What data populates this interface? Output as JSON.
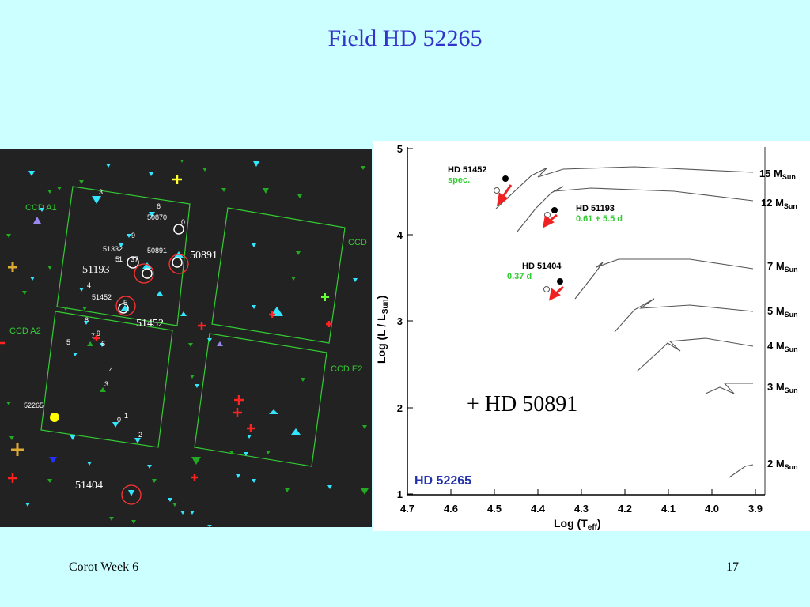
{
  "slide": {
    "title": "Field HD 52265",
    "footer_left": "Corot Week 6",
    "page_number": "17",
    "note": "+ HD 50891"
  },
  "starfield": {
    "background": "#222222",
    "ccd_labels": [
      "CCD A1",
      "CCD A2",
      "CCD",
      "CCD E2"
    ],
    "star_ids": [
      "51193",
      "50891",
      "51452",
      "51404",
      "50870",
      "51332",
      "52265"
    ],
    "small_numbers": [
      "3",
      "6",
      "0",
      "9",
      "50891",
      "4",
      "5",
      "8",
      "7",
      "9",
      "5",
      "6",
      "4",
      "3",
      "0",
      "1",
      "2"
    ]
  },
  "hr_diagram": {
    "xlabel": "Log (T",
    "xlabel_sub": "eff",
    "ylabel": "Log (L / L",
    "ylabel_sub": "Sun",
    "x_ticks": [
      "4.7",
      "4.6",
      "4.5",
      "4.4",
      "4.3",
      "4.2",
      "4.1",
      "4.0",
      "3.9"
    ],
    "y_ticks": [
      "5",
      "4",
      "3",
      "2",
      "1"
    ],
    "mass_labels": [
      "15 M",
      "12 M",
      "7 M",
      "5 M",
      "4 M",
      "3 M",
      "2 M"
    ],
    "mass_sub": "Sun",
    "star_label": "HD 52265",
    "annotations": [
      {
        "name": "HD 51452",
        "note": "spec."
      },
      {
        "name": "HD 51193",
        "note": "0.61 + 5.5 d"
      },
      {
        "name": "HD 51404",
        "note": "0.37 d"
      }
    ]
  }
}
